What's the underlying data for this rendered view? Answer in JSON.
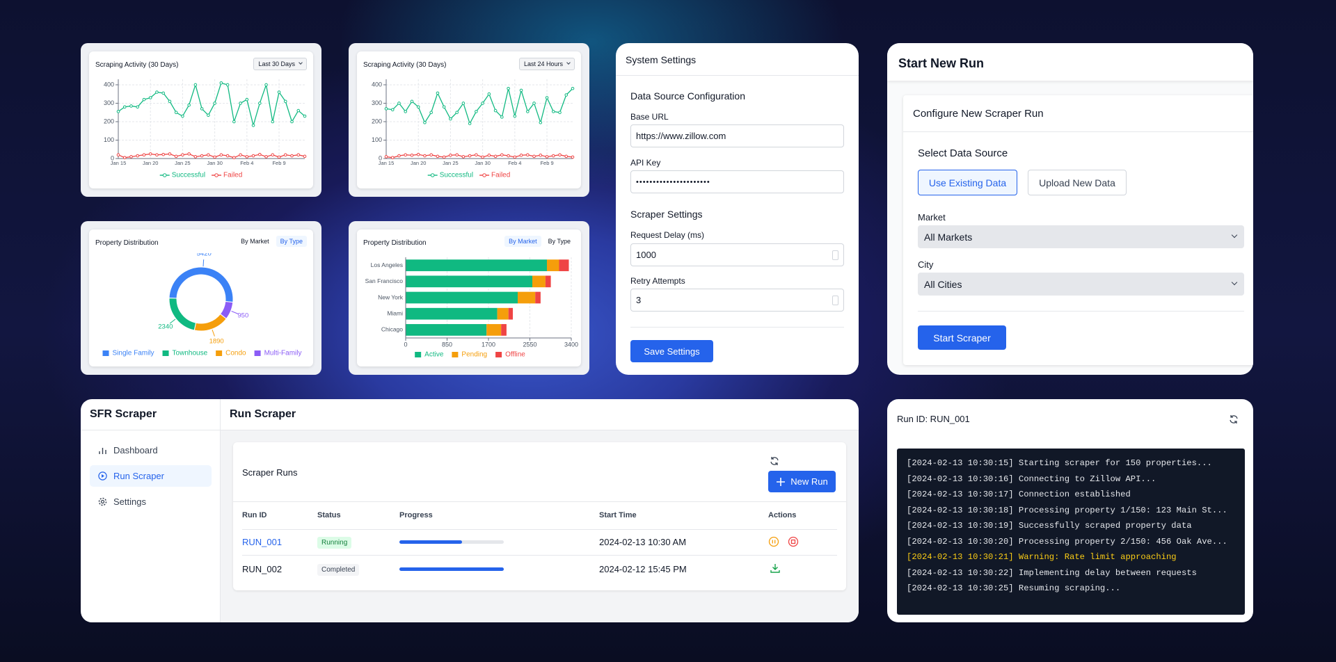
{
  "chart_data": [
    {
      "type": "line",
      "title": "Scraping Activity (30 Days)",
      "range_selector": "Last 30 Days",
      "categories": [
        "Jan 15",
        null,
        null,
        null,
        null,
        "Jan 20",
        null,
        null,
        null,
        null,
        "Jan 25",
        null,
        null,
        null,
        null,
        "Jan 30",
        null,
        null,
        null,
        null,
        "Feb 4",
        null,
        null,
        null,
        null,
        "Feb 9",
        null,
        null,
        null,
        null
      ],
      "series": [
        {
          "name": "Successful",
          "color": "#10b981",
          "values": [
            255,
            280,
            285,
            280,
            320,
            330,
            360,
            355,
            310,
            250,
            230,
            290,
            400,
            270,
            235,
            300,
            410,
            400,
            200,
            300,
            320,
            180,
            300,
            400,
            200,
            360,
            310,
            200,
            260,
            230
          ]
        },
        {
          "name": "Failed",
          "color": "#ef4444",
          "values": [
            20,
            5,
            10,
            15,
            20,
            25,
            20,
            22,
            25,
            12,
            20,
            25,
            10,
            15,
            20,
            8,
            20,
            15,
            5,
            20,
            10,
            15,
            22,
            10,
            20,
            8,
            20,
            15,
            20,
            12
          ]
        }
      ],
      "ylim": [
        0,
        430
      ],
      "yticks": [
        0,
        100,
        200,
        300,
        400
      ],
      "grid": true
    },
    {
      "type": "line",
      "title": "Scraping Activity (30 Days)",
      "range_selector": "Last 24 Hours",
      "categories": [
        "Jan 15",
        null,
        null,
        null,
        null,
        "Jan 20",
        null,
        null,
        null,
        null,
        "Jan 25",
        null,
        null,
        null,
        null,
        "Jan 30",
        null,
        null,
        null,
        null,
        "Feb 4",
        null,
        null,
        null,
        null,
        "Feb 9",
        null,
        null,
        null,
        null
      ],
      "series": [
        {
          "name": "Successful",
          "color": "#10b981",
          "values": [
            270,
            265,
            300,
            255,
            310,
            280,
            195,
            250,
            355,
            280,
            215,
            250,
            300,
            190,
            255,
            300,
            350,
            260,
            225,
            380,
            230,
            370,
            255,
            300,
            195,
            330,
            255,
            250,
            345,
            380
          ]
        },
        {
          "name": "Failed",
          "color": "#ef4444",
          "values": [
            10,
            5,
            15,
            20,
            18,
            22,
            15,
            20,
            12,
            8,
            18,
            20,
            10,
            15,
            20,
            8,
            18,
            12,
            20,
            15,
            8,
            18,
            20,
            12,
            18,
            10,
            15,
            20,
            12,
            8
          ]
        }
      ],
      "ylim": [
        0,
        430
      ],
      "yticks": [
        0,
        100,
        200,
        300,
        400
      ],
      "grid": true
    },
    {
      "type": "donut",
      "title": "Property Distribution",
      "tabs": [
        "By Market",
        "By Type"
      ],
      "active_tab": 1,
      "categories": [
        "Single Family",
        "Townhouse",
        "Condo",
        "Multi-Family"
      ],
      "values": [
        5420,
        2340,
        1890,
        950
      ],
      "colors": [
        "#3b82f6",
        "#10b981",
        "#f59e0b",
        "#8b5cf6"
      ]
    },
    {
      "type": "bar",
      "orientation": "horizontal",
      "stacked": true,
      "title": "Property Distribution",
      "tabs": [
        "By Market",
        "By Type"
      ],
      "active_tab": 0,
      "categories": [
        "Los Angeles",
        "San Francisco",
        "New York",
        "Miami",
        "Chicago"
      ],
      "series": [
        {
          "name": "Active",
          "color": "#10b981",
          "values": [
            2900,
            2600,
            2300,
            1880,
            1660
          ]
        },
        {
          "name": "Pending",
          "color": "#f59e0b",
          "values": [
            250,
            270,
            360,
            230,
            300
          ]
        },
        {
          "name": "Offline",
          "color": "#ef4444",
          "values": [
            200,
            110,
            110,
            90,
            110
          ]
        }
      ],
      "xlim": [
        0,
        3400
      ],
      "xticks": [
        0,
        850,
        1700,
        2550,
        3400
      ],
      "grid": true
    }
  ],
  "system_settings": {
    "title": "System Settings",
    "source_heading": "Data Source Configuration",
    "base_url_label": "Base URL",
    "base_url": "https://www.zillow.com",
    "api_key_label": "API Key",
    "api_key": "••••••••••••••••••••••",
    "scraper_heading": "Scraper Settings",
    "delay_label": "Request Delay (ms)",
    "delay": "1000",
    "retry_label": "Retry Attempts",
    "retry": "3",
    "save_button": "Save Settings"
  },
  "start_run": {
    "title": "Start New Run",
    "card_title": "Configure New Scraper Run",
    "source_heading": "Select Data Source",
    "options": [
      "Use Existing Data",
      "Upload New Data"
    ],
    "market_label": "Market",
    "market": "All Markets",
    "city_label": "City",
    "city": "All Cities",
    "start_button": "Start Scraper"
  },
  "app": {
    "brand": "SFR Scraper",
    "nav": [
      "Dashboard",
      "Run Scraper",
      "Settings"
    ],
    "active_nav": 1,
    "header": "Run Scraper",
    "card_title": "Scraper Runs",
    "new_run_button": "New Run",
    "table": {
      "columns": [
        "Run ID",
        "Status",
        "Progress",
        "Start Time",
        "Actions"
      ],
      "progress_range": [
        0,
        100
      ],
      "rows": [
        {
          "run_id": "RUN_001",
          "run_id_color": "#2563eb",
          "status": "Running",
          "status_color": "#15803d",
          "status_bg": "#dcfce7",
          "progress": 60,
          "start_time": "2024-02-13 10:30 AM"
        },
        {
          "run_id": "RUN_002",
          "run_id_color": "#111827",
          "status": "Completed",
          "status_color": "#374151",
          "status_bg": "#f3f4f6",
          "progress": 100,
          "start_time": "2024-02-12 15:45 PM"
        }
      ]
    }
  },
  "run_log": {
    "title": "Run ID: RUN_001",
    "lines": [
      {
        "text": "[2024-02-13 10:30:15] Starting scraper for 150 properties...",
        "color": "#e5e7eb"
      },
      {
        "text": "[2024-02-13 10:30:16] Connecting to Zillow API...",
        "color": "#e5e7eb"
      },
      {
        "text": "[2024-02-13 10:30:17] Connection established",
        "color": "#e5e7eb"
      },
      {
        "text": "[2024-02-13 10:30:18] Processing property 1/150: 123 Main St...",
        "color": "#e5e7eb"
      },
      {
        "text": "[2024-02-13 10:30:19] Successfully scraped property data",
        "color": "#e5e7eb"
      },
      {
        "text": "[2024-02-13 10:30:20] Processing property 2/150: 456 Oak Ave...",
        "color": "#e5e7eb"
      },
      {
        "text": "[2024-02-13 10:30:21] Warning: Rate limit approaching",
        "color": "#facc15"
      },
      {
        "text": "[2024-02-13 10:30:22] Implementing delay between requests",
        "color": "#e5e7eb"
      },
      {
        "text": "[2024-02-13 10:30:25] Resuming scraping...",
        "color": "#e5e7eb"
      }
    ]
  }
}
